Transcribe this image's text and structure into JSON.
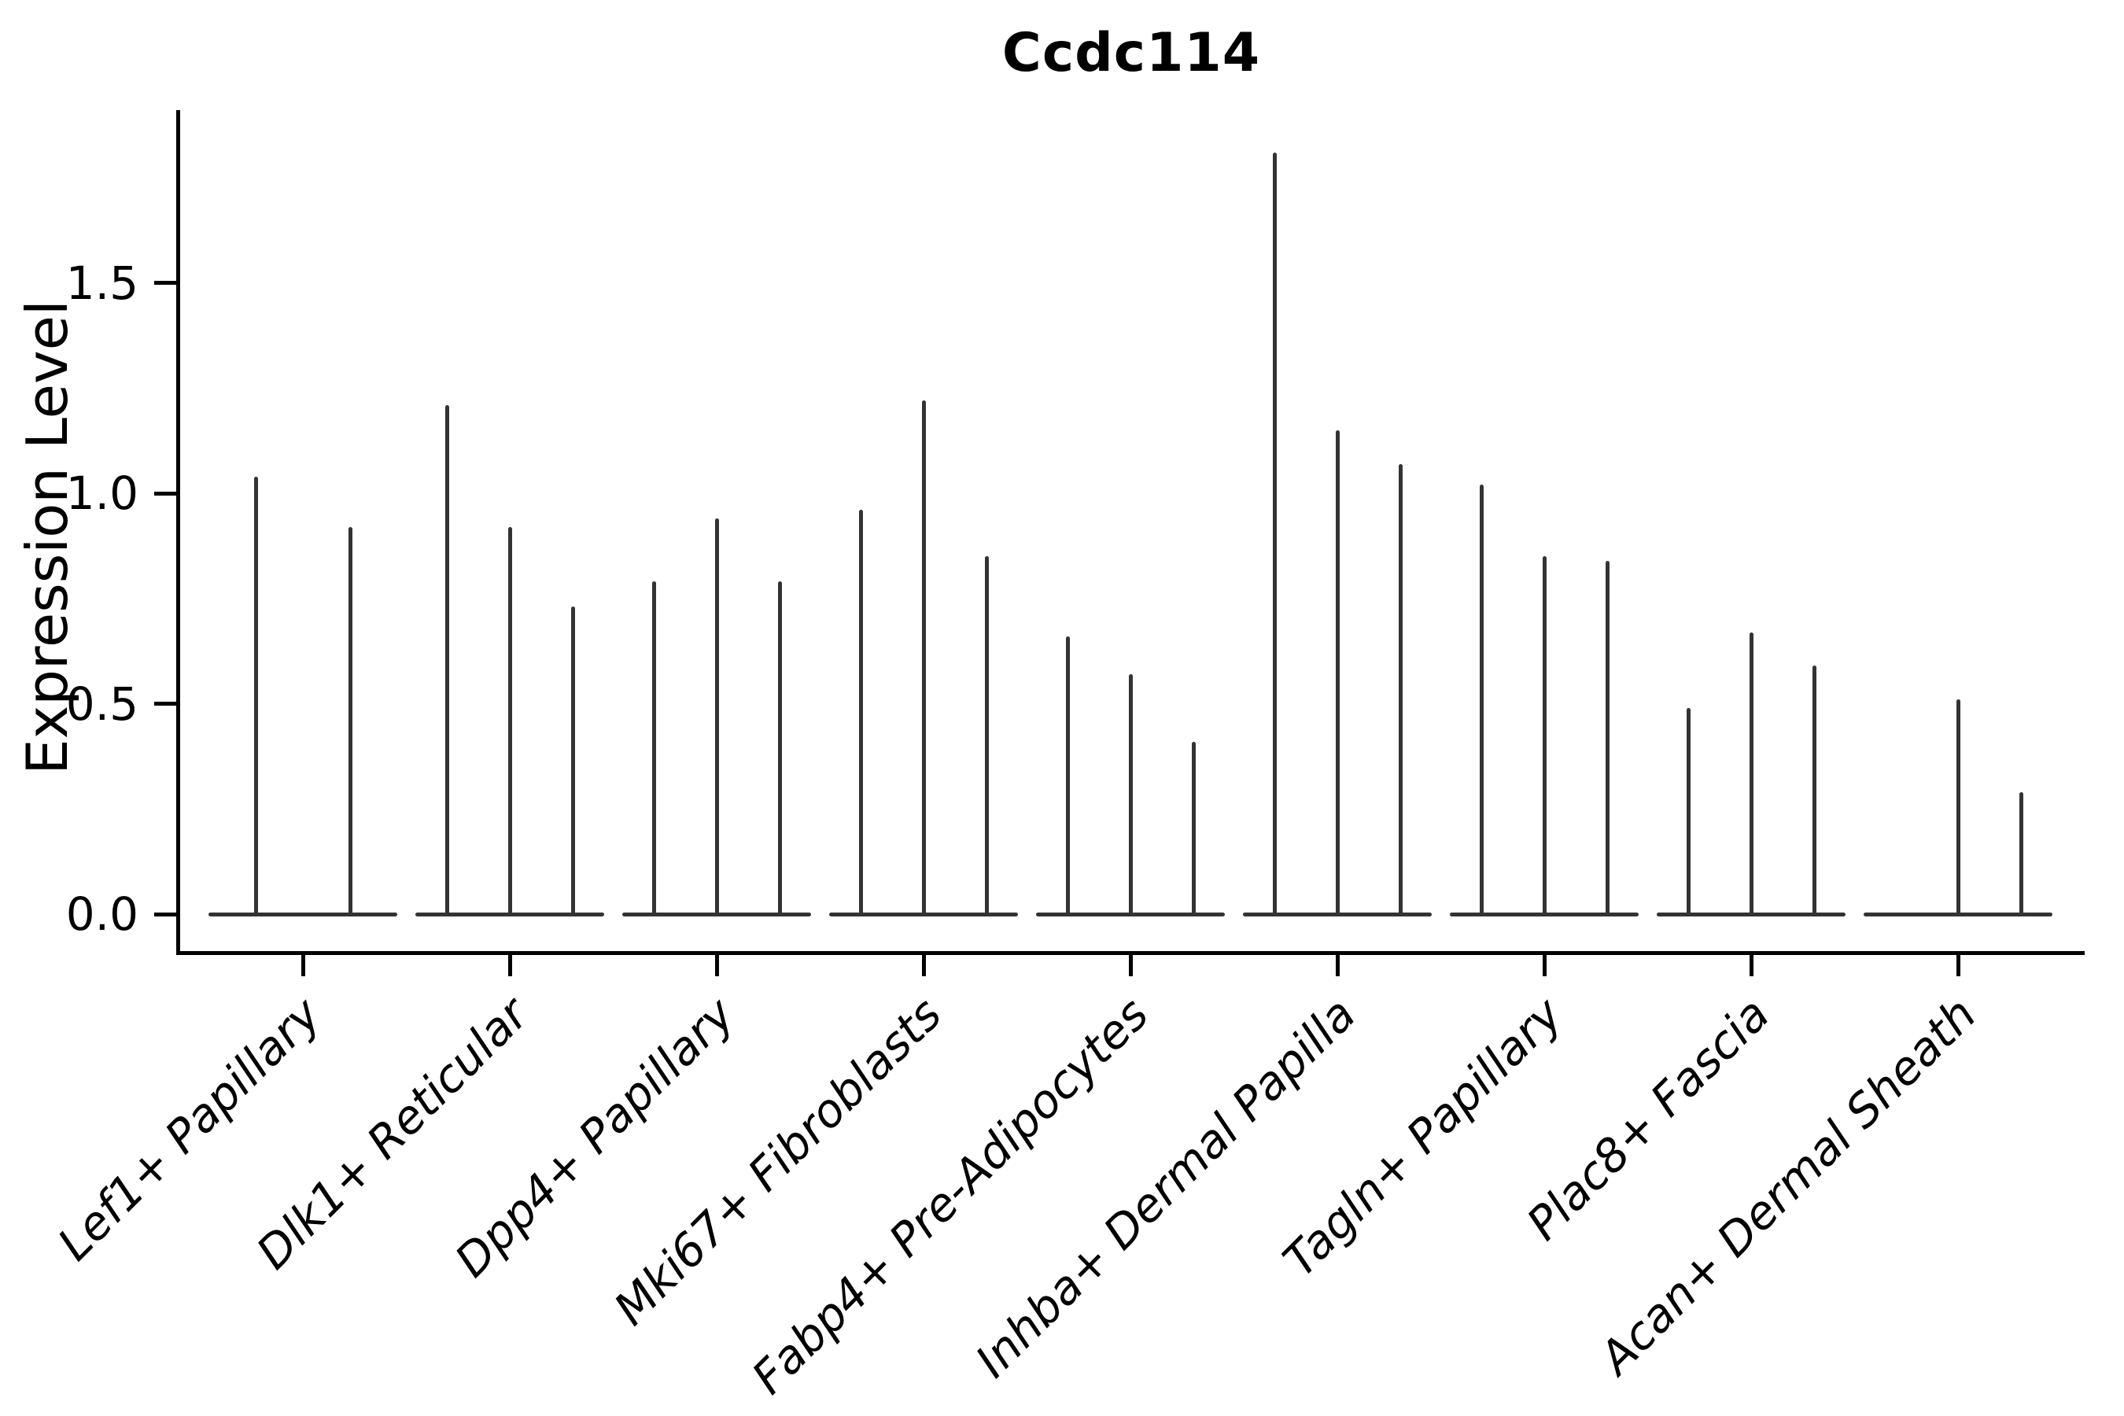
{
  "title": "Ccdc114",
  "chart_data": {
    "type": "violin",
    "title": "Ccdc114",
    "ylabel": "Expression Level",
    "xlabel": "",
    "grid": false,
    "legend": "none",
    "ylim": [
      -0.09,
      1.91
    ],
    "ytick_values": [
      0.0,
      0.5,
      1.0,
      1.5
    ],
    "ytick_labels": [
      "0.0",
      "0.5",
      "1.0",
      "1.5"
    ],
    "categories": [
      "Lef1+ Papillary",
      "Dlk1+ Reticular",
      "Dpp4+ Papillary",
      "Mki67+ Fibroblasts",
      "Fabp4+ Pre-Adipocytes",
      "Inhba+ Dermal Papilla",
      "Tagln+ Papillary",
      "Plac8+ Fascia",
      "Acan+ Dermal Sheath"
    ],
    "groups": [
      {
        "label": "Lef1+ Papillary",
        "violins": [
          {
            "dx": -60,
            "peak": 1.04
          },
          {
            "dx": 60,
            "peak": 0.92
          }
        ]
      },
      {
        "label": "Dlk1+ Reticular",
        "violins": [
          {
            "dx": -80,
            "peak": 1.21
          },
          {
            "dx": 0,
            "peak": 0.92
          },
          {
            "dx": 80,
            "peak": 0.73
          }
        ]
      },
      {
        "label": "Dpp4+ Papillary",
        "violins": [
          {
            "dx": -80,
            "peak": 0.79
          },
          {
            "dx": 0,
            "peak": 0.94
          },
          {
            "dx": 80,
            "peak": 0.79
          }
        ]
      },
      {
        "label": "Mki67+ Fibroblasts",
        "violins": [
          {
            "dx": -80,
            "peak": 0.96
          },
          {
            "dx": 0,
            "peak": 1.22
          },
          {
            "dx": 80,
            "peak": 0.85
          }
        ]
      },
      {
        "label": "Fabp4+ Pre-Adipocytes",
        "violins": [
          {
            "dx": -80,
            "peak": 0.66
          },
          {
            "dx": 0,
            "peak": 0.57
          },
          {
            "dx": 80,
            "peak": 0.41
          }
        ]
      },
      {
        "label": "Inhba+ Dermal Papilla",
        "violins": [
          {
            "dx": -80,
            "peak": 1.81
          },
          {
            "dx": 0,
            "peak": 1.15
          },
          {
            "dx": 80,
            "peak": 1.07
          }
        ]
      },
      {
        "label": "Tagln+ Papillary",
        "violins": [
          {
            "dx": -80,
            "peak": 1.02
          },
          {
            "dx": 0,
            "peak": 0.85
          },
          {
            "dx": 80,
            "peak": 0.84
          }
        ]
      },
      {
        "label": "Plac8+ Fascia",
        "violins": [
          {
            "dx": -80,
            "peak": 0.49
          },
          {
            "dx": 0,
            "peak": 0.67
          },
          {
            "dx": 80,
            "peak": 0.59
          }
        ]
      },
      {
        "label": "Acan+ Dermal Sheath",
        "violins": [
          {
            "dx": -80,
            "peak": 0.0
          },
          {
            "dx": 0,
            "peak": 0.51
          },
          {
            "dx": 80,
            "peak": 0.29
          }
        ]
      }
    ]
  }
}
